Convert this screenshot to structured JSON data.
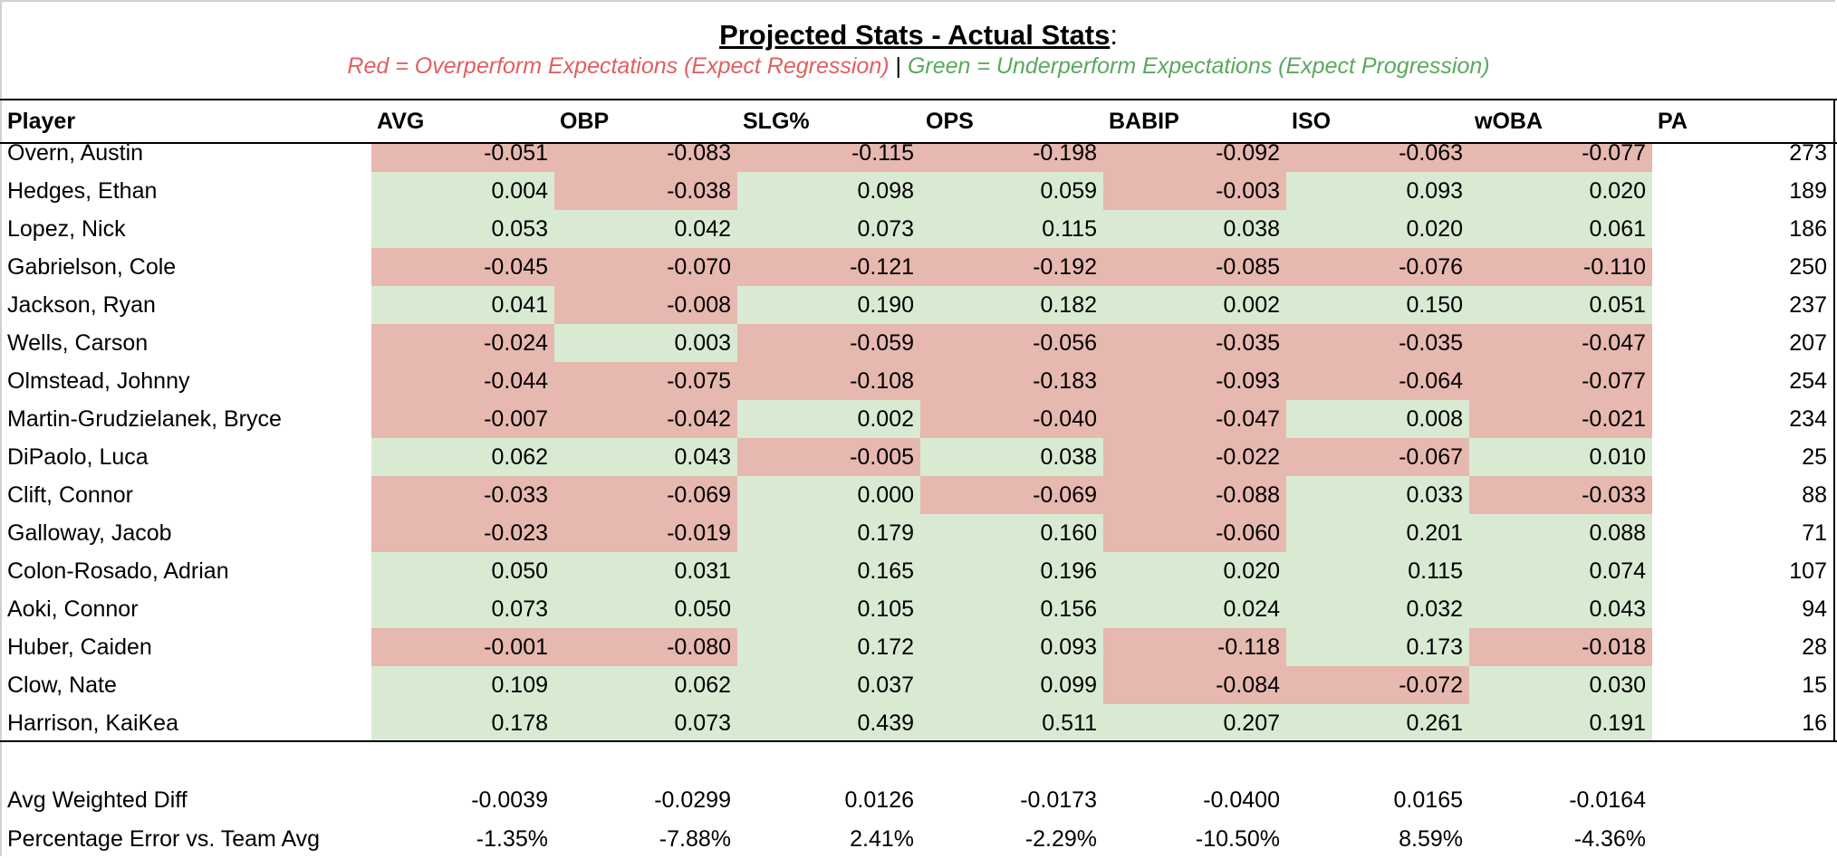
{
  "title": "Projected Stats - Actual Stats",
  "title_suffix": ":",
  "legend": {
    "red": "Red = Overperform Expectations (Expect Regression)",
    "sep": " | ",
    "green": "Green = Underperform Expectations (Expect Progression)"
  },
  "colors": {
    "overperform_fill": "#e6b8af",
    "underperform_fill": "#d9ead3",
    "red_text": "#e06060",
    "green_text": "#5aa95e"
  },
  "headers": [
    "Player",
    "AVG",
    "OBP",
    "SLG%",
    "OPS",
    "BABIP",
    "ISO",
    "wOBA",
    "PA"
  ],
  "rows": [
    {
      "player": "Overn, Austin",
      "values": [
        "-0.051",
        "-0.083",
        "-0.115",
        "-0.198",
        "-0.092",
        "-0.063",
        "-0.077"
      ],
      "pa": "273"
    },
    {
      "player": "Hedges, Ethan",
      "values": [
        "0.004",
        "-0.038",
        "0.098",
        "0.059",
        "-0.003",
        "0.093",
        "0.020"
      ],
      "pa": "189"
    },
    {
      "player": "Lopez, Nick",
      "values": [
        "0.053",
        "0.042",
        "0.073",
        "0.115",
        "0.038",
        "0.020",
        "0.061"
      ],
      "pa": "186"
    },
    {
      "player": "Gabrielson, Cole",
      "values": [
        "-0.045",
        "-0.070",
        "-0.121",
        "-0.192",
        "-0.085",
        "-0.076",
        "-0.110"
      ],
      "pa": "250"
    },
    {
      "player": "Jackson, Ryan",
      "values": [
        "0.041",
        "-0.008",
        "0.190",
        "0.182",
        "0.002",
        "0.150",
        "0.051"
      ],
      "pa": "237"
    },
    {
      "player": "Wells, Carson",
      "values": [
        "-0.024",
        "0.003",
        "-0.059",
        "-0.056",
        "-0.035",
        "-0.035",
        "-0.047"
      ],
      "pa": "207"
    },
    {
      "player": "Olmstead, Johnny",
      "values": [
        "-0.044",
        "-0.075",
        "-0.108",
        "-0.183",
        "-0.093",
        "-0.064",
        "-0.077"
      ],
      "pa": "254"
    },
    {
      "player": "Martin-Grudzielanek, Bryce",
      "values": [
        "-0.007",
        "-0.042",
        "0.002",
        "-0.040",
        "-0.047",
        "0.008",
        "-0.021"
      ],
      "pa": "234"
    },
    {
      "player": "DiPaolo, Luca",
      "values": [
        "0.062",
        "0.043",
        "-0.005",
        "0.038",
        "-0.022",
        "-0.067",
        "0.010"
      ],
      "pa": "25"
    },
    {
      "player": "Clift, Connor",
      "values": [
        "-0.033",
        "-0.069",
        "0.000",
        "-0.069",
        "-0.088",
        "0.033",
        "-0.033"
      ],
      "pa": "88"
    },
    {
      "player": "Galloway, Jacob",
      "values": [
        "-0.023",
        "-0.019",
        "0.179",
        "0.160",
        "-0.060",
        "0.201",
        "0.088"
      ],
      "pa": "71"
    },
    {
      "player": "Colon-Rosado, Adrian",
      "values": [
        "0.050",
        "0.031",
        "0.165",
        "0.196",
        "0.020",
        "0.115",
        "0.074"
      ],
      "pa": "107"
    },
    {
      "player": "Aoki, Connor",
      "values": [
        "0.073",
        "0.050",
        "0.105",
        "0.156",
        "0.024",
        "0.032",
        "0.043"
      ],
      "pa": "94"
    },
    {
      "player": "Huber, Caiden",
      "values": [
        "-0.001",
        "-0.080",
        "0.172",
        "0.093",
        "-0.118",
        "0.173",
        "-0.018"
      ],
      "pa": "28"
    },
    {
      "player": "Clow, Nate",
      "values": [
        "0.109",
        "0.062",
        "0.037",
        "0.099",
        "-0.084",
        "-0.072",
        "0.030"
      ],
      "pa": "15"
    },
    {
      "player": "Harrison, KaiKea",
      "values": [
        "0.178",
        "0.073",
        "0.439",
        "0.511",
        "0.207",
        "0.261",
        "0.191"
      ],
      "pa": "16"
    }
  ],
  "summary": [
    {
      "label": "Avg Weighted Diff",
      "values": [
        "-0.0039",
        "-0.0299",
        "0.0126",
        "-0.0173",
        "-0.0400",
        "0.0165",
        "-0.0164"
      ]
    },
    {
      "label": "Percentage Error vs. Team Avg",
      "values": [
        "-1.35%",
        "-7.88%",
        "2.41%",
        "-2.29%",
        "-10.50%",
        "8.59%",
        "-4.36%"
      ]
    }
  ]
}
